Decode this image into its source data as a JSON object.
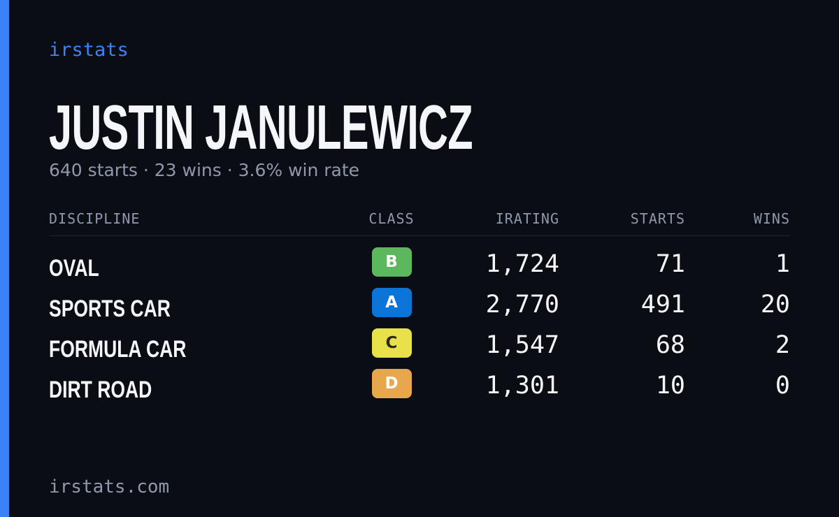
{
  "brand": "irstats",
  "player": {
    "name": "JUSTIN JANULEWICZ",
    "summary": "640 starts · 23 wins · 3.6% win rate"
  },
  "table": {
    "headers": [
      "DISCIPLINE",
      "CLASS",
      "IRATING",
      "STARTS",
      "WINS"
    ],
    "rows": [
      [
        "OVAL",
        "B",
        "1,724",
        "71",
        "1"
      ],
      [
        "SPORTS CAR",
        "A",
        "2,770",
        "491",
        "20"
      ],
      [
        "FORMULA CAR",
        "C",
        "1,547",
        "68",
        "2"
      ],
      [
        "DIRT ROAD",
        "D",
        "1,301",
        "10",
        "0"
      ]
    ],
    "class_colors": {
      "A": "#0b74d8",
      "B": "#5cb85c",
      "C": "#e8e14a",
      "D": "#e8a74a"
    },
    "class_text_colors": {
      "A": "#ffffff",
      "B": "#ffffff",
      "C": "#2a2a1a",
      "D": "#ffffff"
    }
  },
  "footer": "irstats.com"
}
